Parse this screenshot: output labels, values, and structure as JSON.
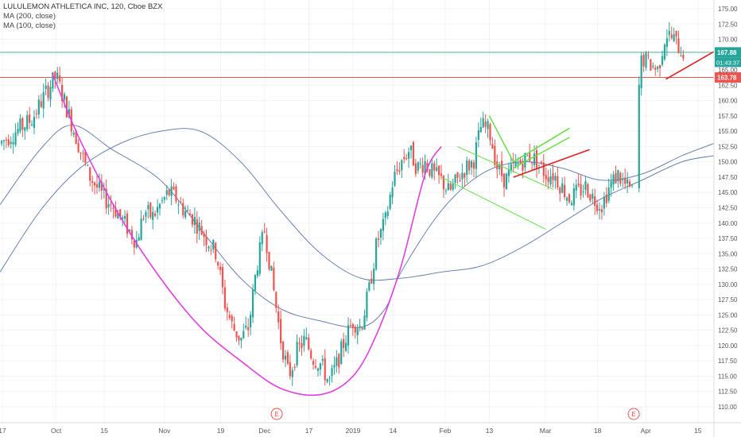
{
  "header": {
    "title": "LULULEMON ATHLETICA INC, 120, Cboe BZX",
    "ma1": "MA (200, close)",
    "ma2": "MA (100, close)"
  },
  "price_labels": {
    "last": "167.88",
    "countdown": "01:43:37",
    "resistance": "163.78"
  },
  "earnings_marker": "E",
  "colors": {
    "up": "#26a69a",
    "down": "#ef5350",
    "ma": "#5b73a8",
    "cup": "#e040e0",
    "channel": "#66dd44",
    "trend": "#e02020",
    "last_line": "#4caf90",
    "resist_line": "#ef5350"
  },
  "chart_data": {
    "type": "candlestick",
    "y_axis": {
      "min": 110,
      "max": 175,
      "side": "right",
      "ticks": [
        "175.00",
        "172.50",
        "170.00",
        "167.50",
        "165.00",
        "162.50",
        "160.00",
        "157.50",
        "155.00",
        "152.50",
        "150.00",
        "147.50",
        "145.00",
        "142.50",
        "140.00",
        "137.50",
        "135.00",
        "132.50",
        "130.00",
        "127.50",
        "125.00",
        "122.50",
        "120.00",
        "117.50",
        "115.00",
        "112.50",
        "110.00"
      ]
    },
    "x_axis": {
      "ticks": [
        {
          "label": "17",
          "x": 0.3
        },
        {
          "label": "Oct",
          "x": 7
        },
        {
          "label": "15",
          "x": 13
        },
        {
          "label": "Nov",
          "x": 20.5
        },
        {
          "label": "19",
          "x": 27.5
        },
        {
          "label": "Dec",
          "x": 33
        },
        {
          "label": "17",
          "x": 38.5
        },
        {
          "label": "2019",
          "x": 44
        },
        {
          "label": "14",
          "x": 49
        },
        {
          "label": "Feb",
          "x": 55.5
        },
        {
          "label": "13",
          "x": 61
        },
        {
          "label": "Mar",
          "x": 68
        },
        {
          "label": "18",
          "x": 74.5
        },
        {
          "label": "Apr",
          "x": 80.5
        },
        {
          "label": "15",
          "x": 87
        }
      ]
    },
    "earnings_x": [
      34.5,
      79
    ],
    "horizontal_lines": [
      {
        "name": "last-price",
        "value": 167.88
      },
      {
        "name": "resistance",
        "value": 163.78
      }
    ],
    "series_close": [
      [
        0,
        153
      ],
      [
        2,
        155
      ],
      [
        4,
        157
      ],
      [
        6,
        162
      ],
      [
        7,
        164
      ],
      [
        8,
        160
      ],
      [
        9,
        156
      ],
      [
        10,
        152
      ],
      [
        11,
        148
      ],
      [
        12,
        146
      ],
      [
        13,
        144
      ],
      [
        14,
        143
      ],
      [
        15,
        141
      ],
      [
        16,
        139
      ],
      [
        17,
        137
      ],
      [
        18,
        142
      ],
      [
        19,
        141
      ],
      [
        20,
        143
      ],
      [
        21,
        145
      ],
      [
        22,
        144
      ],
      [
        23,
        142
      ],
      [
        24,
        141
      ],
      [
        25,
        139
      ],
      [
        26,
        137
      ],
      [
        27,
        135
      ],
      [
        28,
        127
      ],
      [
        29,
        123
      ],
      [
        30,
        121
      ],
      [
        31,
        123
      ],
      [
        32,
        133
      ],
      [
        33,
        139
      ],
      [
        34,
        130
      ],
      [
        35,
        121
      ],
      [
        36,
        115
      ],
      [
        37,
        119
      ],
      [
        38,
        121
      ],
      [
        39,
        118
      ],
      [
        40,
        117
      ],
      [
        41,
        114
      ],
      [
        42,
        117
      ],
      [
        43,
        121
      ],
      [
        44,
        124
      ],
      [
        45,
        123
      ],
      [
        46,
        129
      ],
      [
        47,
        137
      ],
      [
        48,
        140
      ],
      [
        49,
        147
      ],
      [
        50,
        150
      ],
      [
        51,
        152
      ],
      [
        52,
        149
      ],
      [
        53,
        150
      ],
      [
        54,
        148
      ],
      [
        55,
        147
      ],
      [
        56,
        145
      ],
      [
        57,
        147
      ],
      [
        58,
        149
      ],
      [
        59,
        150
      ],
      [
        60,
        156
      ],
      [
        61,
        155
      ],
      [
        62,
        149
      ],
      [
        63,
        147
      ],
      [
        64,
        149
      ],
      [
        65,
        150
      ],
      [
        66,
        151
      ],
      [
        67,
        150
      ],
      [
        68,
        148
      ],
      [
        69,
        148
      ],
      [
        70,
        146
      ],
      [
        71,
        144
      ],
      [
        72,
        145
      ],
      [
        73,
        146
      ],
      [
        74,
        144
      ],
      [
        75,
        143
      ],
      [
        76,
        146
      ],
      [
        77,
        148
      ],
      [
        78,
        146
      ],
      [
        79,
        145
      ],
      [
        79.5,
        160
      ],
      [
        80,
        167
      ],
      [
        81,
        166
      ],
      [
        82,
        165
      ],
      [
        83,
        171
      ],
      [
        84,
        170
      ],
      [
        85,
        168
      ]
    ],
    "moving_averages": [
      {
        "name": "MA (200, close)",
        "points": [
          [
            0,
            132
          ],
          [
            5,
            142
          ],
          [
            10,
            149
          ],
          [
            15,
            153
          ],
          [
            20,
            155
          ],
          [
            25,
            155
          ],
          [
            30,
            150
          ],
          [
            35,
            142
          ],
          [
            40,
            135
          ],
          [
            45,
            131
          ],
          [
            50,
            131
          ],
          [
            55,
            132
          ],
          [
            60,
            133
          ],
          [
            65,
            136
          ],
          [
            70,
            140
          ],
          [
            75,
            144
          ],
          [
            80,
            147
          ],
          [
            85,
            150
          ],
          [
            89,
            151
          ]
        ]
      },
      {
        "name": "MA (100, close)",
        "points": [
          [
            0,
            143
          ],
          [
            5,
            152
          ],
          [
            9,
            156
          ],
          [
            14,
            152
          ],
          [
            20,
            147
          ],
          [
            25,
            139
          ],
          [
            30,
            131
          ],
          [
            35,
            126
          ],
          [
            40,
            124
          ],
          [
            45,
            123
          ],
          [
            48,
            126
          ],
          [
            50,
            132
          ],
          [
            55,
            142
          ],
          [
            60,
            148
          ],
          [
            65,
            150
          ],
          [
            70,
            149
          ],
          [
            75,
            147
          ],
          [
            80,
            148
          ],
          [
            85,
            151
          ],
          [
            89,
            153
          ]
        ]
      }
    ],
    "drawings": [
      {
        "name": "cup-curve",
        "type": "curve",
        "points": [
          [
            6.5,
            164.5
          ],
          [
            10,
            153.5
          ],
          [
            15,
            141
          ],
          [
            20,
            131
          ],
          [
            25,
            123
          ],
          [
            30,
            117.5
          ],
          [
            35,
            113
          ],
          [
            40,
            112
          ],
          [
            44,
            115
          ],
          [
            47,
            122
          ],
          [
            50,
            133
          ],
          [
            53,
            148
          ],
          [
            55,
            152.5
          ]
        ]
      },
      {
        "name": "channel-upper",
        "type": "line",
        "points": [
          [
            57,
            152.5
          ],
          [
            69,
            145.5
          ]
        ]
      },
      {
        "name": "channel-lower",
        "type": "line",
        "points": [
          [
            55,
            147.5
          ],
          [
            68,
            139
          ]
        ]
      },
      {
        "name": "flag-upper",
        "type": "line",
        "points": [
          [
            61,
            157.5
          ],
          [
            64,
            150
          ]
        ]
      },
      {
        "name": "flag-line-1",
        "type": "line",
        "points": [
          [
            64,
            150
          ],
          [
            71,
            155.5
          ]
        ]
      },
      {
        "name": "flag-line-2",
        "type": "line",
        "points": [
          [
            64,
            149
          ],
          [
            71,
            154
          ]
        ]
      },
      {
        "name": "trend-support",
        "type": "line",
        "points": [
          [
            64,
            147.5
          ],
          [
            73.5,
            152
          ]
        ]
      },
      {
        "name": "trend-support-2",
        "type": "line",
        "points": [
          [
            83,
            163.5
          ],
          [
            89,
            168
          ]
        ]
      }
    ]
  }
}
